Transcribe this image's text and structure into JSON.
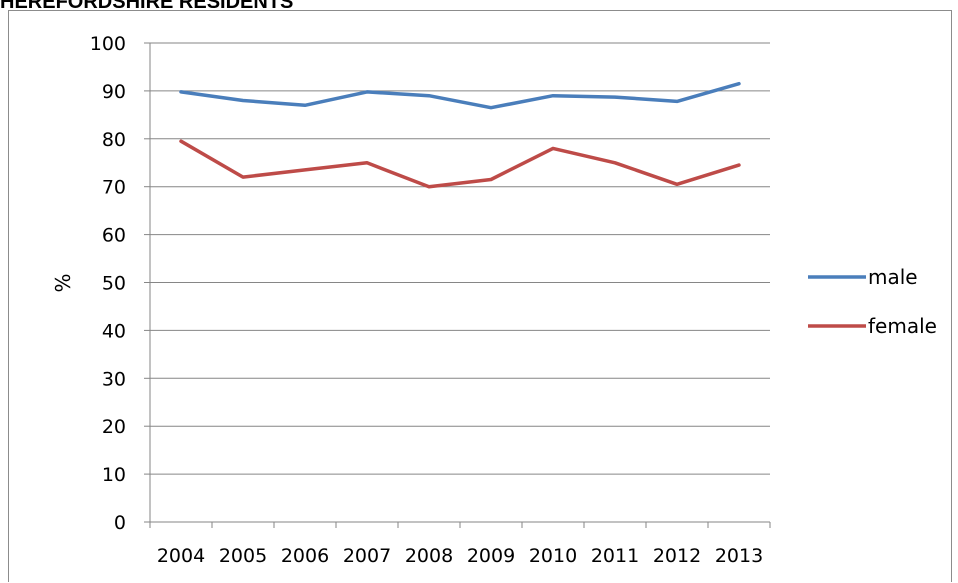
{
  "page": {
    "title": "HEREFORDSHIRE RESIDENTS"
  },
  "chart_data": {
    "type": "line",
    "title": "",
    "xlabel": "",
    "ylabel": "%",
    "ylim": [
      0,
      100
    ],
    "yticks": [
      "0",
      "10",
      "20",
      "30",
      "40",
      "50",
      "60",
      "70",
      "80",
      "90",
      "100"
    ],
    "categories": [
      "2004",
      "2005",
      "2006",
      "2007",
      "2008",
      "2009",
      "2010",
      "2011",
      "2012",
      "2013"
    ],
    "grid": true,
    "legend_position": "right",
    "series": [
      {
        "name": "male",
        "color": "#4a7ebb",
        "values": [
          89.8,
          88.0,
          87.0,
          89.8,
          89.0,
          86.5,
          89.0,
          88.7,
          87.8,
          91.5
        ]
      },
      {
        "name": "female",
        "color": "#be4b48",
        "values": [
          79.5,
          72.0,
          73.5,
          75.0,
          70.0,
          71.5,
          78.0,
          75.0,
          70.5,
          74.5
        ]
      }
    ]
  }
}
